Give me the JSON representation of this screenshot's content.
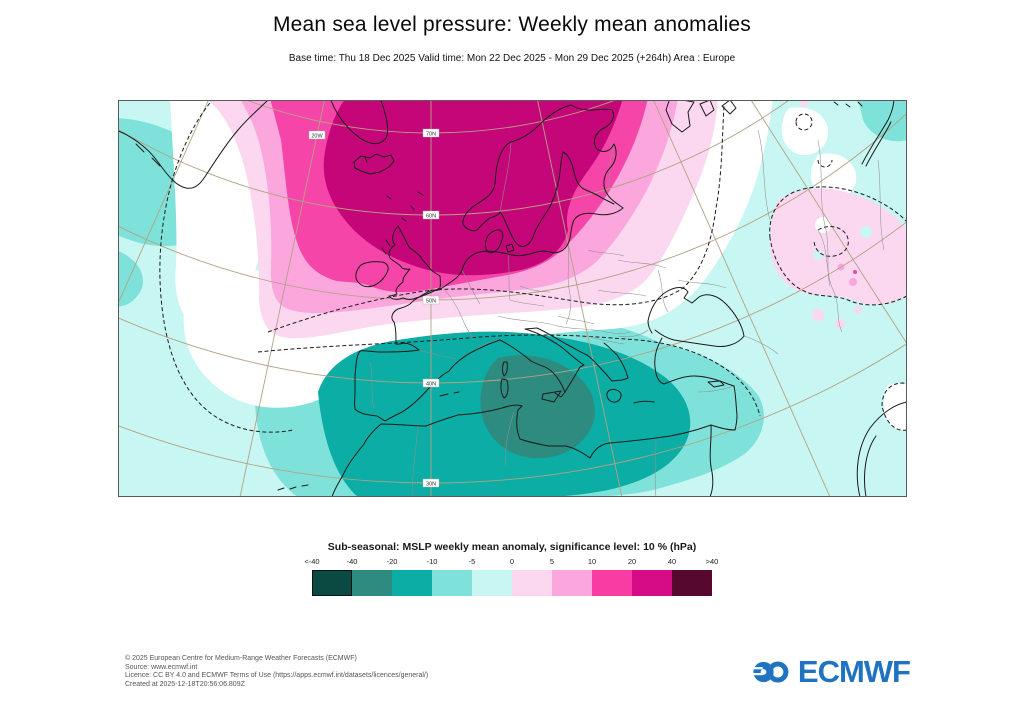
{
  "header": {
    "title": "Mean sea level pressure: Weekly mean anomalies",
    "subtitle": "Base time: Thu 18 Dec 2025 Valid time: Mon 22 Dec 2025 - Mon 29 Dec 2025 (+264h) Area : Europe"
  },
  "map": {
    "latitude_labels": [
      "70N",
      "60N",
      "50N",
      "40N",
      "30N"
    ],
    "longitude_label": "20W",
    "fill_colors": {
      "background_weak_negative": "#c8f6f2",
      "light_cyan": "#7ee2da",
      "teal": "#0bada4",
      "dark_teal": "#2e8b80",
      "pale_pink": "#fcd8f0",
      "medium_pink": "#fba6dc",
      "hot_pink": "#f645a8",
      "deep_magenta": "#c50679",
      "graticule": "#b4a284"
    }
  },
  "map_data": {
    "type": "filled-contour-anomaly-map",
    "area": "Europe",
    "variable": "Mean sea level pressure weekly mean anomaly (hPa)",
    "positive_anomaly": {
      "location": "North Atlantic / Iceland / Scandinavia",
      "peak_range_hPa": "20 to 40"
    },
    "negative_anomaly": {
      "location": "Iberia / western Mediterranean / North Africa",
      "peak_range_hPa": "-20 to -40"
    },
    "secondary_positive": {
      "location": "western Russia",
      "range_hPa": "5 to 10"
    },
    "significance_contours": "dashed black lines, significance level 10 %"
  },
  "legend": {
    "title": "Sub-seasonal: MSLP weekly mean anomaly, significance level: 10 % (hPa)",
    "ticks": [
      "<-40",
      "-40",
      "-20",
      "-10",
      "-5",
      "0",
      "5",
      "10",
      "20",
      "40",
      ">40"
    ],
    "colors": [
      "#0a4a43",
      "#2e8b80",
      "#0bada4",
      "#7ee2da",
      "#c8f6f2",
      "#fcd8f0",
      "#fba6dc",
      "#f93ca4",
      "#d60c86",
      "#56082f"
    ]
  },
  "footer": {
    "lines": [
      "© 2025 European Centre for Medium-Range Weather Forecasts (ECMWF)",
      "Source: www.ecmwf.int",
      "Licence: CC BY 4.0 and ECMWF Terms of Use (https://apps.ecmwf.int/datasets/licences/general/)",
      "Created at 2025-12-18T20:56:06.809Z"
    ],
    "logo_text": "ECMWF",
    "logo_color": "#1f73c0"
  }
}
